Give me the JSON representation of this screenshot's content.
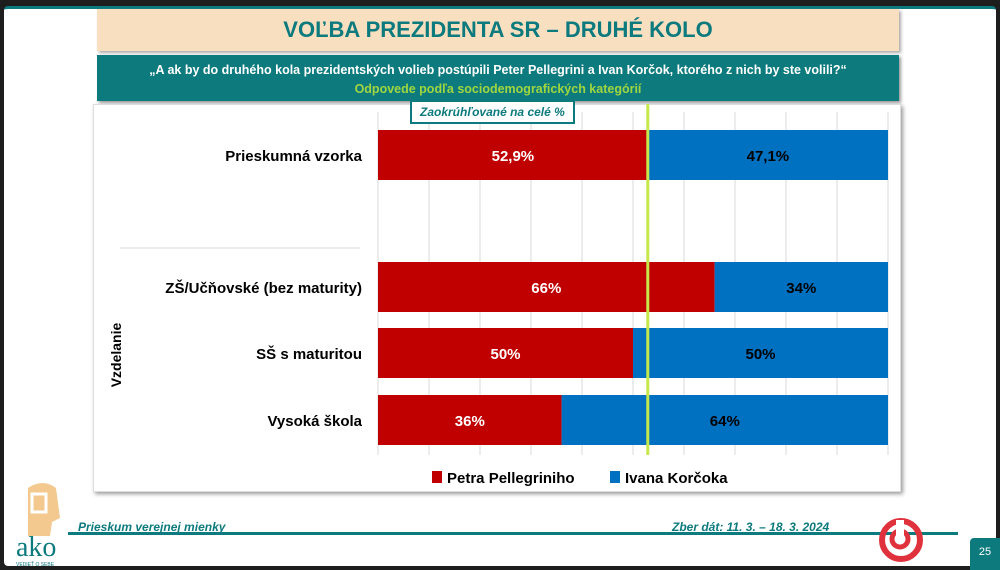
{
  "title": "VOĽBA PREZIDENTA SR – DRUHÉ KOLO",
  "question": "„A ak by do druhého kola prezidentských volieb postúpili Peter Pellegrini a Ivan Korčok, ktorého z nich by ste volili?“",
  "subtitle": "Odpovede podľa sociodemografických kategórií",
  "note": "Zaokrúhľované na celé %",
  "footer": {
    "left": "Prieskum verejnej mienky",
    "right": "Zber dát: 11. 3. – 18. 3. 2024",
    "page": "25",
    "logo": "ako",
    "logo_tagline": "VEDIEŤ O SEBE"
  },
  "chart_data": {
    "type": "bar",
    "stacked": true,
    "orientation": "horizontal",
    "categories": [
      "Prieskumná vzorka",
      "ZŠ/Učňovské (bez maturity)",
      "SŠ s maturitou",
      "Vysoká škola"
    ],
    "group_label": "Vzdelanie",
    "series": [
      {
        "name": "Petra Pellegriniho",
        "color": "#c00000",
        "values": [
          52.9,
          66,
          50,
          36
        ],
        "labels": [
          "52,9%",
          "66%",
          "50%",
          "36%"
        ]
      },
      {
        "name": "Ivana Korčoka",
        "color": "#0070c0",
        "values": [
          47.1,
          34,
          50,
          64
        ],
        "labels": [
          "47,1%",
          "34%",
          "50%",
          "64%"
        ]
      }
    ],
    "xlim": [
      0,
      100
    ],
    "grid": true,
    "reference_line": 52.9,
    "reference_color": "#c6e84a",
    "legend": "bottom"
  }
}
